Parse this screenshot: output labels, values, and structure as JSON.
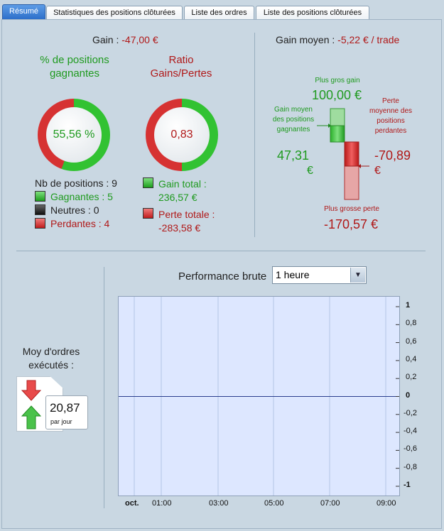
{
  "tabs": [
    {
      "label": "Résumé",
      "active": true
    },
    {
      "label": "Statistiques des positions clôturées",
      "active": false
    },
    {
      "label": "Liste des ordres",
      "active": false
    },
    {
      "label": "Liste des positions clôturées",
      "active": false
    }
  ],
  "summary": {
    "gain_label": "Gain :",
    "gain_value": "-47,00 €",
    "avg_gain_label": "Gain moyen :",
    "avg_gain_value": "-5,22 € / trade",
    "win_pct_title": "% de positions gagnantes",
    "win_pct_value": "55,56 %",
    "win_ratio": 0.5556,
    "ratio_title": "Ratio Gains/Pertes",
    "ratio_value": "0,83",
    "nb_positions": "Nb de positions : 9",
    "gagnantes": "Gagnantes : 5",
    "neutres": "Neutres : 0",
    "perdantes": "Perdantes : 4",
    "gain_total_label": "Gain total :",
    "gain_total_value": "236,57 €",
    "perte_totale_label": "Perte totale :",
    "perte_totale_value": "-283,58 €"
  },
  "avg_chart": {
    "best_gain_label": "Plus gros gain",
    "best_gain_value": "100,00 €",
    "avg_win_label": "Gain moyen des positions gagnantes",
    "avg_win_value": "47,31",
    "avg_win_currency": "€",
    "avg_loss_label": "Perte moyenne des positions perdantes",
    "avg_loss_value": "-70,89",
    "avg_loss_currency": "€",
    "worst_loss_label": "Plus grosse perte",
    "worst_loss_value": "-170,57 €"
  },
  "orders": {
    "title": "Moy d'ordres exécutés :",
    "rate_value": "20,87",
    "rate_unit": "par jour"
  },
  "performance": {
    "label": "Performance brute",
    "period_selected": "1 heure"
  },
  "colors": {
    "green": "#1f9a1f",
    "red": "#b01818",
    "accent_tab": "#2d6fca",
    "plot_bg": "#dde7ff"
  },
  "chart_data": {
    "type": "line",
    "x_ticks": [
      "oct.",
      "01:00",
      "03:00",
      "05:00",
      "07:00",
      "09:00"
    ],
    "y_ticks": [
      "1",
      "0,8",
      "0,6",
      "0,4",
      "0,2",
      "0",
      "-0,2",
      "-0,4",
      "-0,6",
      "-0,8",
      "-1"
    ],
    "ylim": [
      -1,
      1
    ],
    "series": [
      {
        "values": [
          0,
          0,
          0,
          0,
          0,
          0
        ]
      }
    ],
    "grid": true
  }
}
